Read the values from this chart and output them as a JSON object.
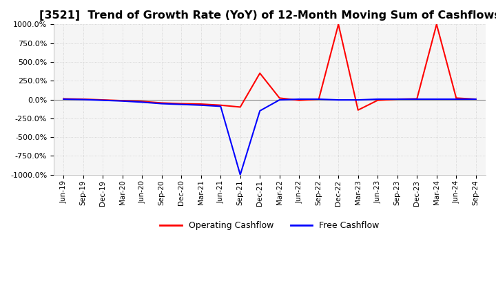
{
  "title": "[3521]  Trend of Growth Rate (YoY) of 12-Month Moving Sum of Cashflows",
  "title_fontsize": 11.5,
  "ylim": [
    -1000,
    1000
  ],
  "yticks": [
    -1000,
    -750,
    -500,
    -250,
    0,
    250,
    500,
    750,
    1000
  ],
  "background_color": "#ffffff",
  "plot_bg_color": "#f5f5f5",
  "grid_color": "#cccccc",
  "operating_color": "#ff0000",
  "free_color": "#0000ff",
  "x_labels": [
    "Jun-19",
    "Sep-19",
    "Dec-19",
    "Mar-20",
    "Jun-20",
    "Sep-20",
    "Dec-20",
    "Mar-21",
    "Jun-21",
    "Sep-21",
    "Dec-21",
    "Mar-22",
    "Jun-22",
    "Sep-22",
    "Dec-22",
    "Mar-23",
    "Jun-23",
    "Sep-23",
    "Dec-23",
    "Mar-24",
    "Jun-24",
    "Sep-24"
  ],
  "operating_cashflow": [
    10,
    5,
    -5,
    -15,
    -25,
    -45,
    -55,
    -60,
    -75,
    -100,
    350,
    20,
    -10,
    5,
    1000,
    -140,
    -10,
    5,
    10,
    1000,
    20,
    5
  ],
  "free_cashflow": [
    5,
    0,
    -10,
    -20,
    -35,
    -55,
    -65,
    -75,
    -90,
    -1000,
    -150,
    -5,
    5,
    5,
    -5,
    -5,
    5,
    5,
    5,
    5,
    5,
    5
  ],
  "legend_entries": [
    "Operating Cashflow",
    "Free Cashflow"
  ],
  "legend_colors": [
    "#ff0000",
    "#0000ff"
  ]
}
